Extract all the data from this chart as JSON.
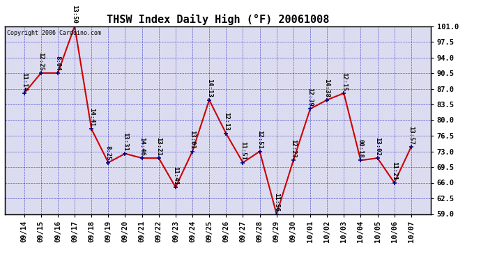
{
  "title": "THSW Index Daily High (°F) 20061008",
  "copyright": "Copyright 2006 Cardoino.com",
  "dates": [
    "09/14",
    "09/15",
    "09/16",
    "09/17",
    "09/18",
    "09/19",
    "09/20",
    "09/21",
    "09/22",
    "09/23",
    "09/24",
    "09/25",
    "09/26",
    "09/27",
    "09/28",
    "09/29",
    "09/30",
    "10/01",
    "10/02",
    "10/03",
    "10/04",
    "10/05",
    "10/06",
    "10/07"
  ],
  "values": [
    86.0,
    90.5,
    90.5,
    101.0,
    78.0,
    70.5,
    72.5,
    71.5,
    71.5,
    65.0,
    73.0,
    84.5,
    77.0,
    70.5,
    73.0,
    59.0,
    71.0,
    82.5,
    84.5,
    86.0,
    71.0,
    71.5,
    66.0,
    74.0
  ],
  "time_labels": [
    "11:14",
    "12:25",
    "8:04",
    "13:50",
    "14:41",
    "8:25",
    "13:31",
    "14:46",
    "13:21",
    "11:41",
    "13:01",
    "14:13",
    "12:13",
    "11:51",
    "12:51",
    "11:56",
    "12:23",
    "12:39",
    "14:38",
    "12:15",
    "00:18",
    "13:02",
    "11:21",
    "13:57"
  ],
  "ylim": [
    59.0,
    101.0
  ],
  "yticks": [
    59.0,
    62.5,
    66.0,
    69.5,
    73.0,
    76.5,
    80.0,
    83.5,
    87.0,
    90.5,
    94.0,
    97.5,
    101.0
  ],
  "line_color": "#cc0000",
  "marker_color": "#000088",
  "grid_color": "#0000bb",
  "bg_color": "#ffffff",
  "plot_bg_color": "#dcdcf0",
  "title_fontsize": 11,
  "label_fontsize": 6.5,
  "tick_fontsize": 7.5,
  "copyright_fontsize": 6.0
}
